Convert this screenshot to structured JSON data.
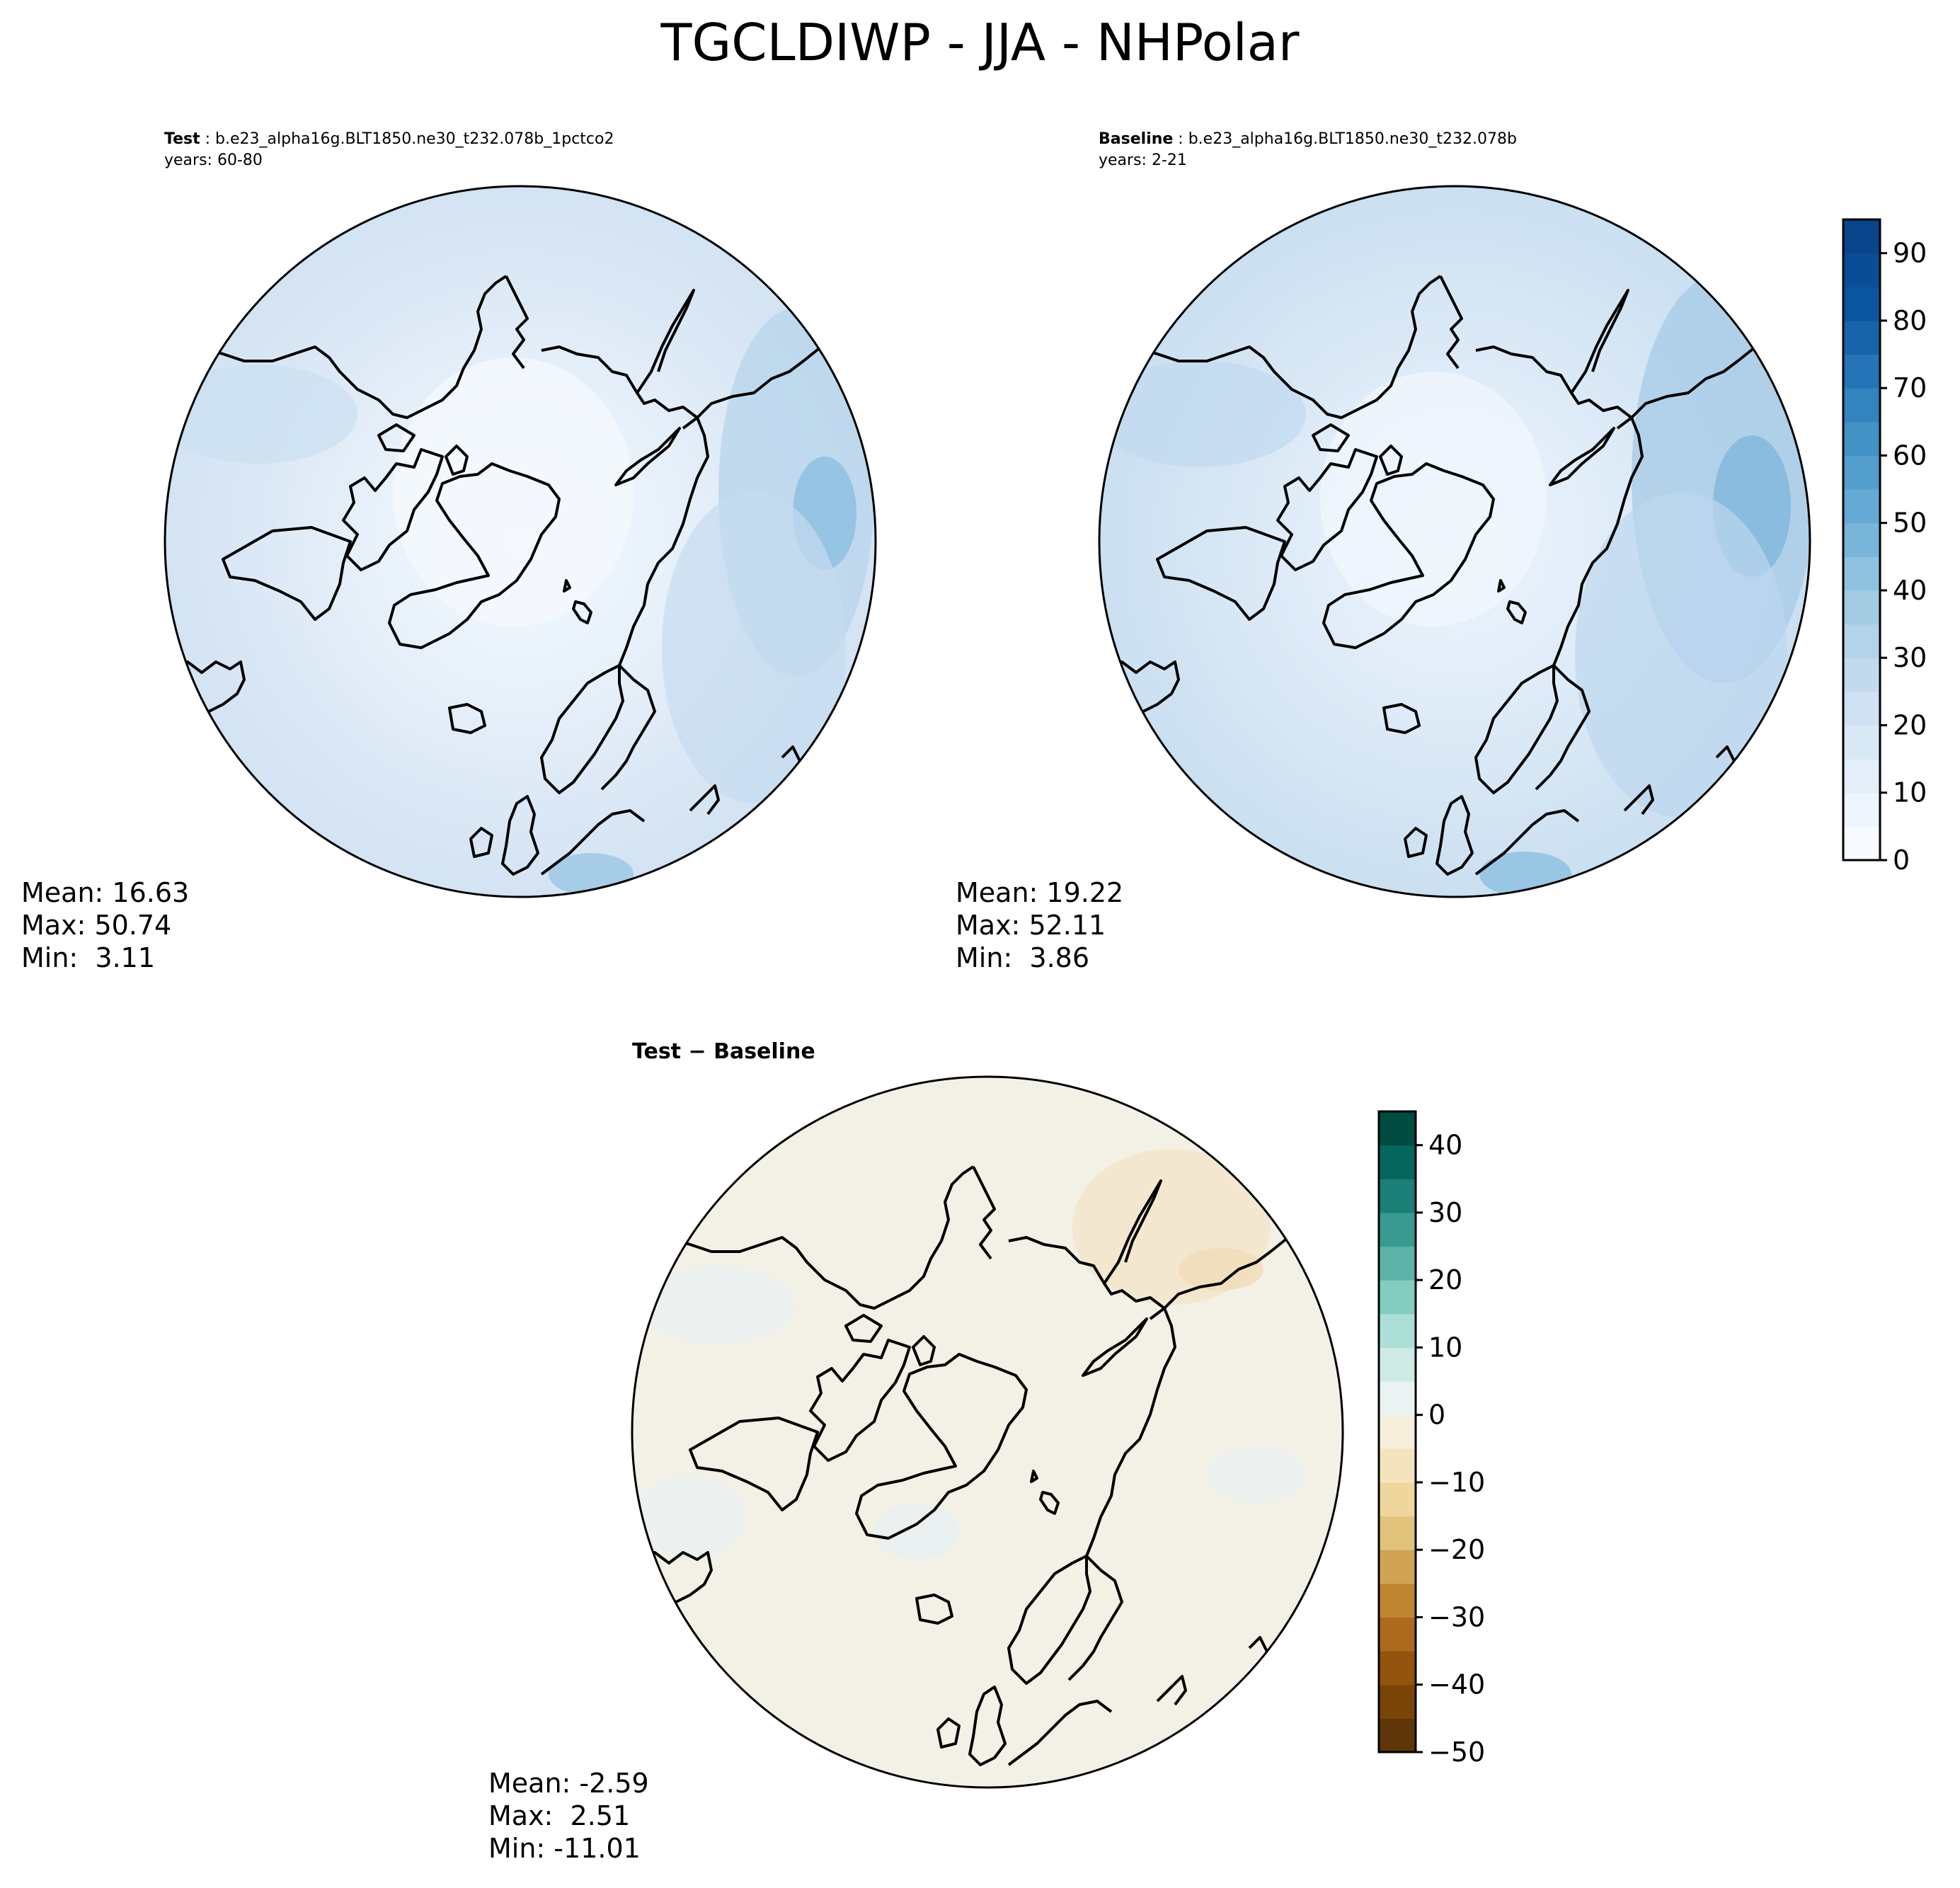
{
  "figure": {
    "title": "TGCLDIWP - JJA - NHPolar"
  },
  "panels": {
    "test": {
      "label": "Test",
      "case": "b.e23_alpha16g.BLT1850.ne30_t232.078b_1pctco2",
      "years": "years: 60-80",
      "mean": "Mean: 16.63",
      "max": "Max: 50.74",
      "min": "Min:  3.11"
    },
    "baseline": {
      "label": "Baseline",
      "case": "b.e23_alpha16g.BLT1850.ne30_t232.078b",
      "years": "years: 2-21",
      "mean": "Mean: 19.22",
      "max": "Max: 52.11",
      "min": "Min:  3.86"
    },
    "diff": {
      "title_test": "Test",
      "title_sep": "−",
      "title_base": "Baseline",
      "mean": "Mean: -2.59",
      "max": "Max:  2.51",
      "min": "Min: -11.01"
    }
  },
  "colorbars": {
    "main": {
      "range": [
        0,
        95
      ],
      "ticks": [
        0,
        10,
        20,
        30,
        40,
        50,
        60,
        70,
        80,
        90
      ],
      "tick_labels": [
        "0",
        "10",
        "20",
        "30",
        "40",
        "50",
        "60",
        "70",
        "80",
        "90"
      ],
      "colors": [
        "#f7fbff",
        "#eef5fc",
        "#e3eef9",
        "#d9e8f5",
        "#cfe1f2",
        "#c3daee",
        "#b3d3e8",
        "#a3cce3",
        "#8fc2de",
        "#7ab6d9",
        "#65aad4",
        "#549fcd",
        "#4392c6",
        "#3383be",
        "#2474b7",
        "#1764ab",
        "#0b559f",
        "#084d96",
        "#08458a"
      ]
    },
    "diff": {
      "range": [
        -50,
        45
      ],
      "ticks": [
        -50,
        -40,
        -30,
        -20,
        -10,
        0,
        10,
        20,
        30,
        40
      ],
      "tick_labels": [
        "−50",
        "−40",
        "−30",
        "−20",
        "−10",
        "0",
        "10",
        "20",
        "30",
        "40"
      ],
      "colors": [
        "#5e3607",
        "#7a4509",
        "#93540e",
        "#ad6a1d",
        "#c08531",
        "#d1a455",
        "#e1c27b",
        "#eed69d",
        "#f4e4be",
        "#f5eedb",
        "#eaf3f2",
        "#cdeae5",
        "#ace0d7",
        "#82cdc0",
        "#5db3a8",
        "#389a90",
        "#1a7f76",
        "#05665d",
        "#004c40"
      ]
    }
  },
  "maps": {
    "projection": "north polar stereographic",
    "colors": {
      "test_field": "#dce9f6",
      "baseline_field": "#d5e5f4",
      "diff_field": "#f3f0e6",
      "coastline": "#000000"
    }
  }
}
